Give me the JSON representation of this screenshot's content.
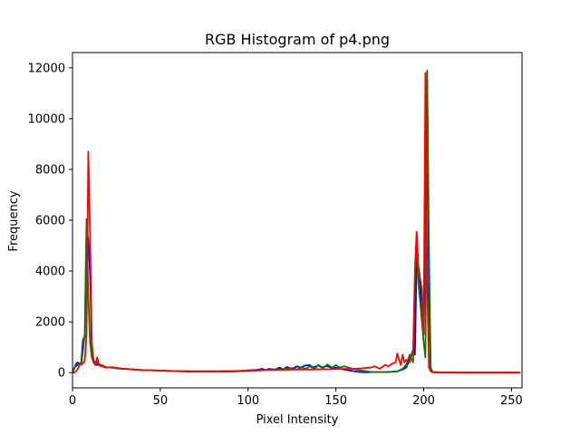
{
  "chart_data": {
    "type": "line",
    "title": "RGB Histogram of p4.png",
    "xlabel": "Pixel Intensity",
    "ylabel": "Frequency",
    "xlim": [
      0,
      256
    ],
    "ylim": [
      -600,
      12600
    ],
    "xticks": [
      0,
      50,
      100,
      150,
      200,
      250
    ],
    "yticks": [
      0,
      2000,
      4000,
      6000,
      8000,
      10000,
      12000
    ],
    "grid": false,
    "series": [
      {
        "color": "#0000ff",
        "x": [
          0,
          1,
          2,
          3,
          4,
          5,
          6,
          7,
          8,
          9,
          10,
          11,
          12,
          13,
          14,
          15,
          16,
          18,
          20,
          22,
          24,
          26,
          28,
          30,
          35,
          40,
          45,
          50,
          55,
          60,
          65,
          70,
          75,
          80,
          85,
          90,
          95,
          100,
          105,
          108,
          110,
          112,
          115,
          118,
          120,
          122,
          125,
          128,
          130,
          132,
          135,
          137,
          140,
          142,
          145,
          148,
          150,
          152,
          155,
          158,
          160,
          163,
          165,
          168,
          170,
          175,
          180,
          185,
          188,
          190,
          192,
          194,
          195,
          196,
          197,
          198,
          199,
          200,
          201,
          202,
          203,
          204,
          205,
          210,
          220,
          230,
          240,
          250,
          255
        ],
        "y": [
          0,
          150,
          350,
          400,
          350,
          400,
          1300,
          1400,
          5700,
          5200,
          3900,
          1000,
          500,
          300,
          300,
          350,
          300,
          250,
          200,
          200,
          180,
          170,
          150,
          150,
          120,
          100,
          90,
          80,
          70,
          60,
          55,
          50,
          50,
          50,
          55,
          60,
          70,
          90,
          110,
          150,
          100,
          150,
          120,
          200,
          130,
          220,
          150,
          250,
          180,
          270,
          300,
          200,
          280,
          200,
          260,
          180,
          200,
          150,
          120,
          80,
          60,
          30,
          20,
          10,
          20,
          20,
          30,
          50,
          120,
          200,
          500,
          900,
          700,
          4500,
          4000,
          3500,
          2500,
          1500,
          6000,
          11500,
          3000,
          100,
          20,
          10,
          0,
          0,
          0,
          0,
          0
        ]
      },
      {
        "color": "#008000",
        "x": [
          0,
          1,
          2,
          3,
          4,
          5,
          6,
          7,
          8,
          9,
          10,
          11,
          12,
          13,
          14,
          15,
          16,
          18,
          20,
          22,
          24,
          26,
          28,
          30,
          35,
          40,
          45,
          50,
          55,
          60,
          65,
          70,
          75,
          80,
          85,
          90,
          95,
          100,
          105,
          110,
          115,
          120,
          125,
          128,
          130,
          133,
          135,
          138,
          140,
          143,
          145,
          148,
          150,
          152,
          155,
          158,
          160,
          163,
          165,
          168,
          170,
          175,
          180,
          185,
          188,
          190,
          192,
          194,
          195,
          196,
          197,
          198,
          199,
          200,
          201,
          202,
          203,
          204,
          205,
          210,
          220,
          230,
          240,
          250,
          255
        ],
        "y": [
          0,
          200,
          250,
          300,
          350,
          300,
          900,
          1500,
          6050,
          3000,
          1200,
          600,
          400,
          350,
          400,
          300,
          250,
          250,
          200,
          200,
          180,
          160,
          150,
          150,
          120,
          100,
          90,
          80,
          60,
          50,
          40,
          40,
          40,
          40,
          40,
          40,
          50,
          60,
          80,
          100,
          130,
          150,
          180,
          120,
          220,
          150,
          250,
          150,
          300,
          180,
          320,
          200,
          300,
          200,
          250,
          180,
          150,
          100,
          80,
          50,
          30,
          20,
          20,
          50,
          150,
          300,
          700,
          400,
          3500,
          5400,
          3500,
          2800,
          2000,
          1200,
          600,
          11900,
          5000,
          200,
          30,
          10,
          0,
          0,
          0,
          0,
          0
        ]
      },
      {
        "color": "#ff0000",
        "x": [
          0,
          1,
          2,
          3,
          4,
          5,
          6,
          7,
          8,
          9,
          10,
          11,
          12,
          13,
          14,
          15,
          16,
          17,
          18,
          20,
          22,
          24,
          26,
          28,
          30,
          35,
          40,
          45,
          50,
          55,
          60,
          65,
          70,
          75,
          80,
          85,
          90,
          95,
          100,
          105,
          110,
          115,
          120,
          125,
          130,
          135,
          140,
          145,
          150,
          155,
          160,
          165,
          170,
          172,
          175,
          178,
          180,
          182,
          184,
          185,
          186,
          187,
          188,
          189,
          190,
          192,
          194,
          195,
          196,
          197,
          198,
          199,
          200,
          201,
          202,
          203,
          204,
          205,
          210,
          220,
          230,
          240,
          250,
          255
        ],
        "y": [
          0,
          0,
          50,
          150,
          300,
          400,
          350,
          500,
          1500,
          8700,
          5500,
          1200,
          400,
          300,
          600,
          350,
          250,
          300,
          200,
          200,
          220,
          200,
          180,
          160,
          150,
          120,
          100,
          90,
          80,
          70,
          60,
          50,
          50,
          50,
          50,
          50,
          60,
          70,
          80,
          90,
          100,
          110,
          110,
          120,
          120,
          120,
          130,
          130,
          140,
          150,
          150,
          170,
          200,
          250,
          150,
          300,
          250,
          350,
          400,
          750,
          500,
          300,
          700,
          400,
          500,
          400,
          900,
          4000,
          5550,
          4200,
          3700,
          3300,
          1500,
          11800,
          3500,
          200,
          50,
          10,
          0,
          0,
          0,
          0,
          0,
          0
        ]
      }
    ]
  }
}
